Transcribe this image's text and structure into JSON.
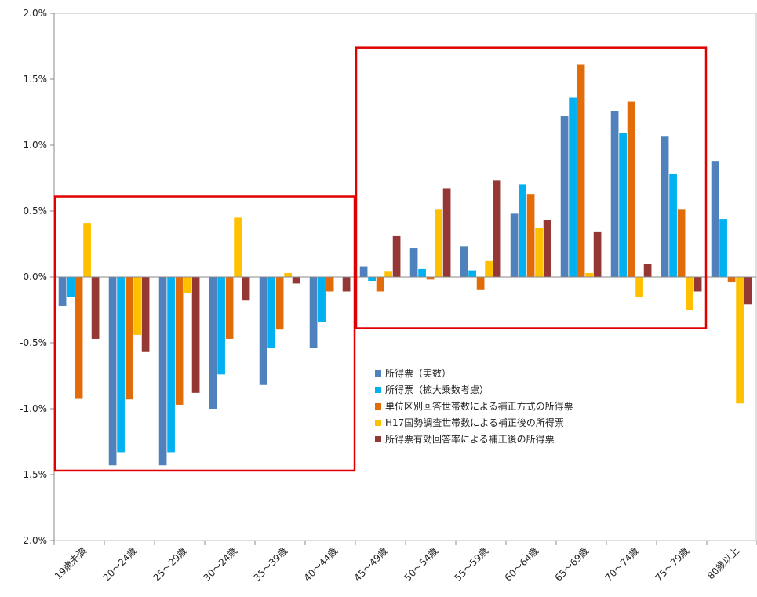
{
  "chart_data": {
    "type": "bar",
    "categories": [
      "19歳未満",
      "20～24歳",
      "25～29歳",
      "30～24歳",
      "35～39歳",
      "40～44歳",
      "45～49歳",
      "50～54歳",
      "55～59歳",
      "60～64歳",
      "65～69歳",
      "70～74歳",
      "75～79歳",
      "80歳以上"
    ],
    "series": [
      {
        "name": "所得票（実数）",
        "color": "#4F81BD",
        "values": [
          -0.22,
          -1.43,
          -1.43,
          -1.0,
          -0.82,
          -0.54,
          0.08,
          0.22,
          0.23,
          0.48,
          1.22,
          1.26,
          1.07,
          0.88
        ]
      },
      {
        "name": "所得票（拡大乗数考慮）",
        "color": "#00B0F0",
        "values": [
          -0.15,
          -1.33,
          -1.33,
          -0.74,
          -0.54,
          -0.34,
          -0.03,
          0.06,
          0.05,
          0.7,
          1.36,
          1.09,
          0.78,
          0.44
        ]
      },
      {
        "name": "単位区別回答世帯数による補正方式の所得票",
        "color": "#E36C0A",
        "values": [
          -0.92,
          -0.93,
          -0.97,
          -0.47,
          -0.4,
          -0.11,
          -0.11,
          -0.02,
          -0.1,
          0.63,
          1.61,
          1.33,
          0.51,
          -0.04
        ]
      },
      {
        "name": "H17国勢調査世帯数による補正後の所得票",
        "color": "#FFC000",
        "values": [
          0.41,
          -0.44,
          -0.12,
          0.45,
          0.03,
          0.0,
          0.04,
          0.51,
          0.12,
          0.37,
          0.03,
          -0.15,
          -0.25,
          -0.96
        ]
      },
      {
        "name": "所得票有効回答率による補正後の所得票",
        "color": "#953735",
        "values": [
          -0.47,
          -0.57,
          -0.88,
          -0.18,
          -0.05,
          -0.11,
          0.31,
          0.67,
          0.73,
          0.43,
          0.34,
          0.1,
          -0.11,
          -0.21
        ]
      }
    ],
    "y_ticks": [
      "2.0%",
      "1.5%",
      "1.0%",
      "0.5%",
      "0.0%",
      "-0.5%",
      "-1.0%",
      "-1.5%",
      "-2.0%"
    ],
    "ylim": [
      -2.0,
      2.0
    ],
    "title": "",
    "xlabel": "",
    "ylabel": "",
    "grid": false,
    "legend_position": "center-right",
    "highlight_color": "#E00000",
    "highlight_boxes": [
      {
        "from_category": 0,
        "to_category": 5,
        "y_top": 0.61,
        "y_bottom": -1.47
      },
      {
        "from_category": 6,
        "to_category": 12,
        "y_top": 1.74,
        "y_bottom": -0.39
      }
    ]
  }
}
